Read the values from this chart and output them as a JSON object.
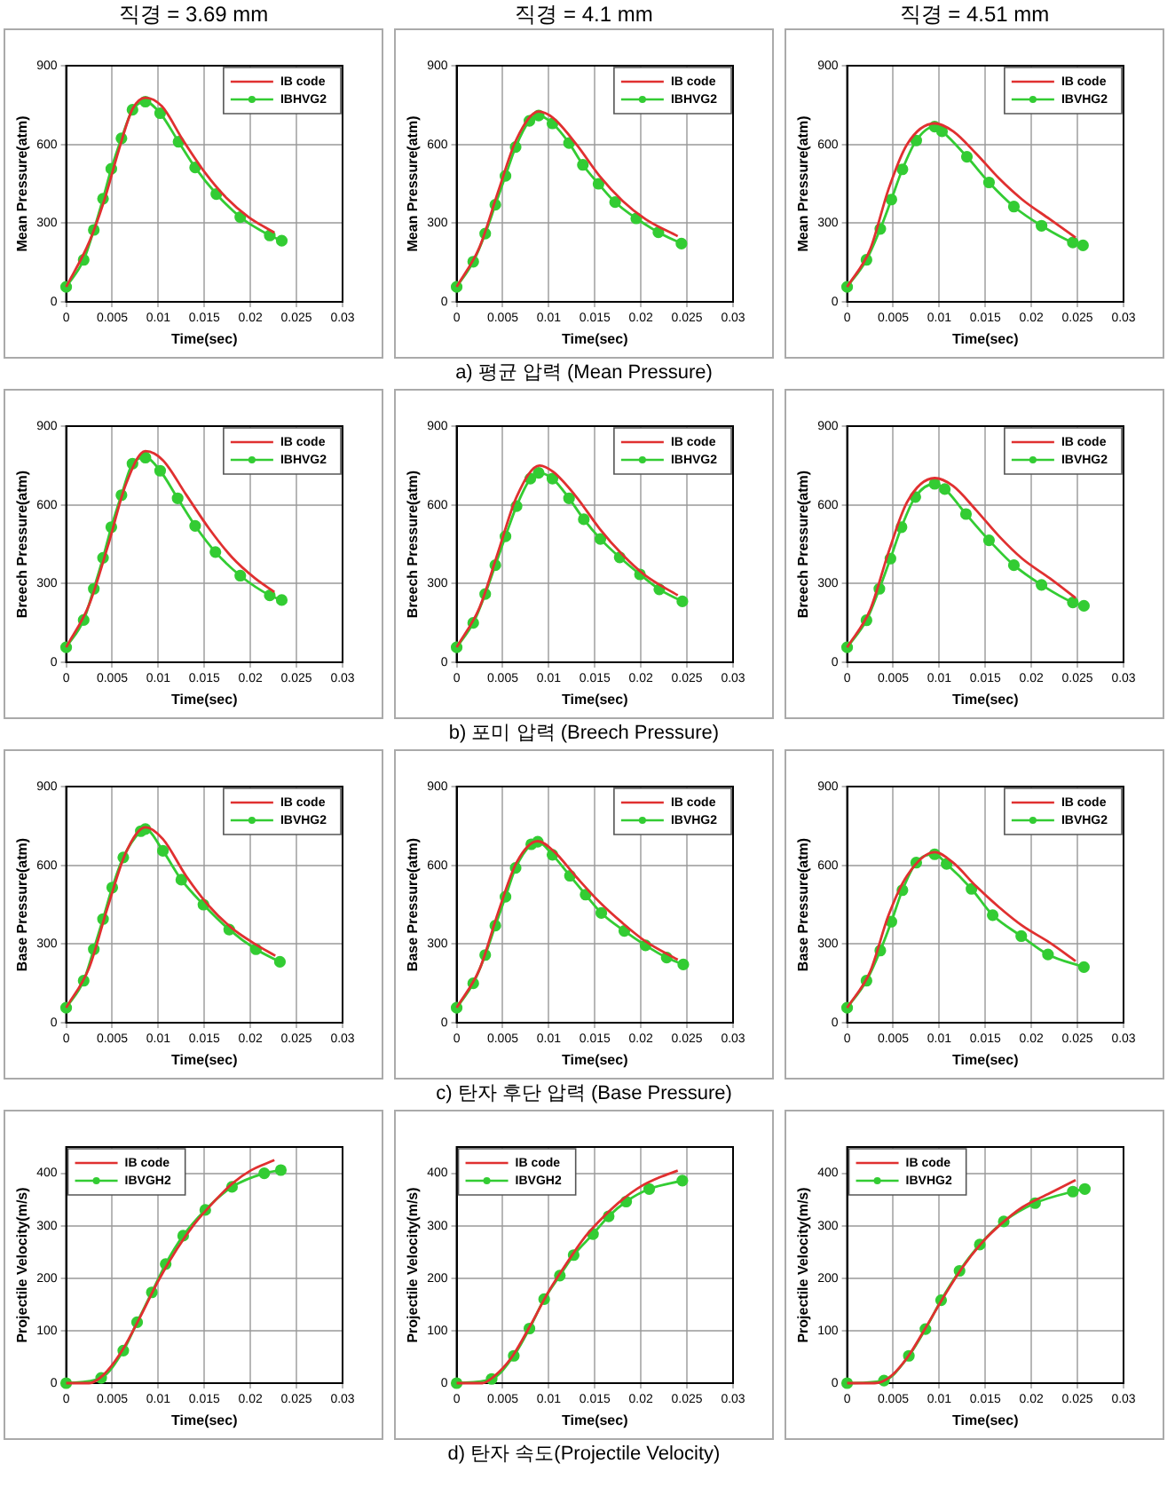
{
  "chart_data": [
    {
      "type": "line",
      "title": "직경 = 3.69 mm",
      "xlabel": "Time(sec)",
      "ylabel": "Mean Pressure(atm)",
      "xlim": [
        0,
        0.03
      ],
      "xticks": [
        0,
        0.005,
        0.01,
        0.015,
        0.02,
        0.025,
        0.03
      ],
      "ylim": [
        0,
        900
      ],
      "yticks": [
        0,
        300,
        600,
        900
      ],
      "grid": true,
      "legend": "top right",
      "series": [
        {
          "name": "IB code",
          "color": "#e03030",
          "marker": "none",
          "x": [
            0,
            0.0025,
            0.0041,
            0.0057,
            0.0072,
            0.0086,
            0.0104,
            0.0127,
            0.0151,
            0.0174,
            0.0198,
            0.0226
          ],
          "values": [
            57,
            228,
            383,
            577,
            735,
            778,
            745,
            615,
            491,
            396,
            323,
            264
          ]
        },
        {
          "name": "IBHVG2",
          "color": "#33cc33",
          "marker": "circle",
          "x": [
            0,
            0.0019,
            0.003,
            0.004,
            0.0049,
            0.006,
            0.0072,
            0.0086,
            0.0102,
            0.0122,
            0.014,
            0.0163,
            0.0189,
            0.0221,
            0.0234
          ],
          "values": [
            57,
            160,
            274,
            393,
            507,
            623,
            732,
            763,
            719,
            610,
            512,
            411,
            323,
            253,
            233
          ]
        }
      ]
    },
    {
      "type": "line",
      "title": "직경 = 4.1 mm",
      "xlabel": "Time(sec)",
      "ylabel": "Mean Pressure(atm)",
      "xlim": [
        0,
        0.03
      ],
      "xticks": [
        0,
        0.005,
        0.01,
        0.015,
        0.02,
        0.025,
        0.03
      ],
      "ylim": [
        0,
        900
      ],
      "yticks": [
        0,
        300,
        600,
        900
      ],
      "grid": true,
      "legend": "top right",
      "annotations": [
        "a) 평균 압력 (Mean Pressure)"
      ],
      "series": [
        {
          "name": "IB code",
          "color": "#e03030",
          "marker": "none",
          "x": [
            0,
            0.0025,
            0.0045,
            0.0065,
            0.0089,
            0.0105,
            0.013,
            0.0155,
            0.018,
            0.0205,
            0.024
          ],
          "values": [
            57,
            210,
            420,
            620,
            725,
            700,
            600,
            480,
            385,
            315,
            250
          ]
        },
        {
          "name": "IBHVG2",
          "color": "#33cc33",
          "marker": "circle",
          "x": [
            0,
            0.0018,
            0.0031,
            0.0042,
            0.0053,
            0.0064,
            0.0079,
            0.0089,
            0.0104,
            0.0122,
            0.0137,
            0.0154,
            0.0172,
            0.0195,
            0.0219,
            0.0244
          ],
          "values": [
            57,
            153,
            260,
            370,
            480,
            590,
            690,
            710,
            680,
            605,
            522,
            450,
            380,
            318,
            265,
            222
          ]
        }
      ]
    },
    {
      "type": "line",
      "title": "직경 = 4.51 mm",
      "xlabel": "Time(sec)",
      "ylabel": "Mean Pressure(atm)",
      "xlim": [
        0,
        0.03
      ],
      "xticks": [
        0,
        0.005,
        0.01,
        0.015,
        0.02,
        0.025,
        0.03
      ],
      "ylim": [
        0,
        900
      ],
      "yticks": [
        0,
        300,
        600,
        900
      ],
      "grid": true,
      "legend": "top right",
      "series": [
        {
          "name": "IB code",
          "color": "#e03030",
          "marker": "none",
          "x": [
            0,
            0.0025,
            0.0045,
            0.0065,
            0.0095,
            0.0115,
            0.014,
            0.0165,
            0.019,
            0.022,
            0.0248
          ],
          "values": [
            57,
            200,
            430,
            600,
            680,
            650,
            565,
            470,
            390,
            315,
            245
          ]
        },
        {
          "name": "IBVHG2",
          "color": "#33cc33",
          "marker": "circle",
          "x": [
            0,
            0.0021,
            0.0036,
            0.0048,
            0.006,
            0.0075,
            0.0095,
            0.0103,
            0.013,
            0.0154,
            0.0181,
            0.0211,
            0.0245,
            0.0256
          ],
          "values": [
            57,
            160,
            278,
            390,
            505,
            615,
            668,
            650,
            553,
            455,
            363,
            290,
            226,
            215
          ]
        }
      ]
    },
    {
      "type": "line",
      "xlabel": "Time(sec)",
      "ylabel": "Breech Pressure(atm)",
      "xlim": [
        0,
        0.03
      ],
      "xticks": [
        0,
        0.005,
        0.01,
        0.015,
        0.02,
        0.025,
        0.03
      ],
      "ylim": [
        0,
        900
      ],
      "yticks": [
        0,
        300,
        600,
        900
      ],
      "grid": true,
      "legend": "top right",
      "series": [
        {
          "name": "IB code",
          "color": "#e03030",
          "marker": "none",
          "x": [
            0,
            0.0025,
            0.0045,
            0.0065,
            0.0086,
            0.0105,
            0.013,
            0.0155,
            0.018,
            0.0205,
            0.0226
          ],
          "values": [
            57,
            220,
            440,
            680,
            805,
            770,
            640,
            510,
            400,
            320,
            268
          ]
        },
        {
          "name": "IBHVG2",
          "color": "#33cc33",
          "marker": "circle",
          "x": [
            0,
            0.0019,
            0.003,
            0.004,
            0.0049,
            0.006,
            0.0072,
            0.0086,
            0.0102,
            0.0121,
            0.014,
            0.0162,
            0.0189,
            0.0221,
            0.0234
          ],
          "values": [
            57,
            161,
            280,
            398,
            515,
            637,
            757,
            780,
            730,
            625,
            520,
            420,
            330,
            255,
            237
          ]
        }
      ]
    },
    {
      "type": "line",
      "xlabel": "Time(sec)",
      "ylabel": "Breech Pressure(atm)",
      "xlim": [
        0,
        0.03
      ],
      "xticks": [
        0,
        0.005,
        0.01,
        0.015,
        0.02,
        0.025,
        0.03
      ],
      "ylim": [
        0,
        900
      ],
      "yticks": [
        0,
        300,
        600,
        900
      ],
      "grid": true,
      "legend": "top right",
      "annotations": [
        "b) 포미 압력 (Breech Pressure)"
      ],
      "series": [
        {
          "name": "IB code",
          "color": "#e03030",
          "marker": "none",
          "x": [
            0,
            0.0025,
            0.0045,
            0.0065,
            0.009,
            0.0105,
            0.013,
            0.0155,
            0.018,
            0.0205,
            0.024
          ],
          "values": [
            57,
            210,
            420,
            630,
            750,
            725,
            630,
            510,
            410,
            330,
            255
          ]
        },
        {
          "name": "IBHVG2",
          "color": "#33cc33",
          "marker": "circle",
          "x": [
            0,
            0.0018,
            0.0031,
            0.0042,
            0.0053,
            0.0065,
            0.008,
            0.0089,
            0.0104,
            0.0122,
            0.0138,
            0.0156,
            0.0177,
            0.0199,
            0.022,
            0.0245
          ],
          "values": [
            57,
            150,
            260,
            370,
            480,
            595,
            700,
            722,
            700,
            625,
            545,
            470,
            400,
            335,
            278,
            232
          ]
        }
      ]
    },
    {
      "type": "line",
      "xlabel": "Time(sec)",
      "ylabel": "Breech Pressure(atm)",
      "xlim": [
        0,
        0.03
      ],
      "xticks": [
        0,
        0.005,
        0.01,
        0.015,
        0.02,
        0.025,
        0.03
      ],
      "ylim": [
        0,
        900
      ],
      "yticks": [
        0,
        300,
        600,
        900
      ],
      "grid": true,
      "legend": "top right",
      "series": [
        {
          "name": "IB code",
          "color": "#e03030",
          "marker": "none",
          "x": [
            0,
            0.0025,
            0.0045,
            0.0065,
            0.0095,
            0.0115,
            0.014,
            0.0165,
            0.019,
            0.022,
            0.0248
          ],
          "values": [
            57,
            200,
            420,
            610,
            702,
            672,
            580,
            480,
            395,
            320,
            245
          ]
        },
        {
          "name": "IBVHG2",
          "color": "#33cc33",
          "marker": "circle",
          "x": [
            0,
            0.0021,
            0.0035,
            0.0047,
            0.0059,
            0.0074,
            0.0095,
            0.0106,
            0.0129,
            0.0154,
            0.0181,
            0.0211,
            0.0245,
            0.0257
          ],
          "values": [
            57,
            160,
            280,
            395,
            515,
            630,
            680,
            660,
            565,
            465,
            370,
            295,
            228,
            215
          ]
        }
      ]
    },
    {
      "type": "line",
      "xlabel": "Time(sec)",
      "ylabel": "Base Pressure(atm)",
      "xlim": [
        0,
        0.03
      ],
      "xticks": [
        0,
        0.005,
        0.01,
        0.015,
        0.02,
        0.025,
        0.03
      ],
      "ylim": [
        0,
        900
      ],
      "yticks": [
        0,
        300,
        600,
        900
      ],
      "grid": true,
      "legend": "top right",
      "series": [
        {
          "name": "IB code",
          "color": "#e03030",
          "marker": "none",
          "x": [
            0,
            0.0025,
            0.0045,
            0.0065,
            0.0086,
            0.0105,
            0.013,
            0.0155,
            0.018,
            0.0205,
            0.0227
          ],
          "values": [
            57,
            210,
            440,
            650,
            745,
            700,
            560,
            445,
            360,
            300,
            255
          ]
        },
        {
          "name": "IBVHG2",
          "color": "#33cc33",
          "marker": "circle",
          "x": [
            0,
            0.0019,
            0.003,
            0.004,
            0.005,
            0.0062,
            0.0081,
            0.0086,
            0.0105,
            0.0125,
            0.0149,
            0.0177,
            0.0206,
            0.0232
          ],
          "values": [
            57,
            160,
            280,
            395,
            515,
            630,
            730,
            738,
            655,
            545,
            450,
            355,
            280,
            232
          ]
        }
      ]
    },
    {
      "type": "line",
      "xlabel": "Time(sec)",
      "ylabel": "Base Pressure(atm)",
      "xlim": [
        0,
        0.03
      ],
      "xticks": [
        0,
        0.005,
        0.01,
        0.015,
        0.02,
        0.025,
        0.03
      ],
      "ylim": [
        0,
        900
      ],
      "yticks": [
        0,
        300,
        600,
        900
      ],
      "grid": true,
      "legend": "top right",
      "annotations": [
        "c) 탄자 후단 압력 (Base Pressure)"
      ],
      "series": [
        {
          "name": "IB code",
          "color": "#e03030",
          "marker": "none",
          "x": [
            0,
            0.0025,
            0.0045,
            0.0065,
            0.0088,
            0.0105,
            0.013,
            0.0155,
            0.018,
            0.0205,
            0.024
          ],
          "values": [
            57,
            205,
            420,
            610,
            692,
            655,
            555,
            460,
            380,
            310,
            240
          ]
        },
        {
          "name": "IBVHG2",
          "color": "#33cc33",
          "marker": "circle",
          "x": [
            0,
            0.0018,
            0.0031,
            0.0042,
            0.0053,
            0.0064,
            0.0081,
            0.0088,
            0.0104,
            0.0123,
            0.014,
            0.0157,
            0.0182,
            0.0205,
            0.0228,
            0.0246
          ],
          "values": [
            57,
            150,
            258,
            370,
            480,
            590,
            680,
            690,
            640,
            560,
            488,
            418,
            350,
            295,
            248,
            222
          ]
        }
      ]
    },
    {
      "type": "line",
      "xlabel": "Time(sec)",
      "ylabel": "Base Pressure(atm)",
      "xlim": [
        0,
        0.03
      ],
      "xticks": [
        0,
        0.005,
        0.01,
        0.015,
        0.02,
        0.025,
        0.03
      ],
      "ylim": [
        0,
        900
      ],
      "yticks": [
        0,
        300,
        600,
        900
      ],
      "grid": true,
      "legend": "top right",
      "series": [
        {
          "name": "IB code",
          "color": "#e03030",
          "marker": "none",
          "x": [
            0,
            0.0025,
            0.0045,
            0.0065,
            0.0095,
            0.0115,
            0.014,
            0.0165,
            0.019,
            0.022,
            0.0248
          ],
          "values": [
            57,
            195,
            410,
            560,
            650,
            610,
            520,
            440,
            370,
            305,
            235
          ]
        },
        {
          "name": "IBVHG2",
          "color": "#33cc33",
          "marker": "circle",
          "x": [
            0,
            0.0021,
            0.0036,
            0.0048,
            0.006,
            0.0075,
            0.0095,
            0.0108,
            0.0135,
            0.0158,
            0.0189,
            0.0218,
            0.0257
          ],
          "values": [
            57,
            160,
            275,
            385,
            505,
            610,
            642,
            605,
            510,
            410,
            330,
            260,
            212
          ]
        }
      ]
    },
    {
      "type": "line",
      "xlabel": "Time(sec)",
      "ylabel": "Projectile Velocity(m/s)",
      "xlim": [
        0,
        0.03
      ],
      "xticks": [
        0,
        0.005,
        0.01,
        0.015,
        0.02,
        0.025,
        0.03
      ],
      "ylim": [
        0,
        450
      ],
      "yticks": [
        0,
        100,
        200,
        300,
        400
      ],
      "grid": true,
      "legend": "top left",
      "series": [
        {
          "name": "IB code",
          "color": "#e03030",
          "marker": "none",
          "x": [
            0,
            0.0025,
            0.004,
            0.006,
            0.008,
            0.01,
            0.012,
            0.014,
            0.016,
            0.018,
            0.02,
            0.0226
          ],
          "values": [
            0,
            0,
            15,
            60,
            125,
            195,
            255,
            305,
            345,
            380,
            405,
            425
          ]
        },
        {
          "name": "IBVGH2",
          "color": "#33cc33",
          "marker": "circle",
          "x": [
            0,
            0.0038,
            0.0062,
            0.0077,
            0.0093,
            0.0108,
            0.0127,
            0.0151,
            0.018,
            0.0215,
            0.0233
          ],
          "values": [
            0,
            10,
            62,
            116,
            173,
            227,
            281,
            330,
            374,
            400,
            406
          ]
        }
      ]
    },
    {
      "type": "line",
      "xlabel": "Time(sec)",
      "ylabel": "Projectile Velocity(m/s)",
      "xlim": [
        0,
        0.03
      ],
      "xticks": [
        0,
        0.005,
        0.01,
        0.015,
        0.02,
        0.025,
        0.03
      ],
      "ylim": [
        0,
        450
      ],
      "yticks": [
        0,
        100,
        200,
        300,
        400
      ],
      "grid": true,
      "legend": "top left",
      "annotations": [
        "d) 탄자 속도(Projectile Velocity)"
      ],
      "series": [
        {
          "name": "IB code",
          "color": "#e03030",
          "marker": "none",
          "x": [
            0,
            0.0028,
            0.004,
            0.006,
            0.008,
            0.01,
            0.012,
            0.014,
            0.016,
            0.018,
            0.02,
            0.022,
            0.024
          ],
          "values": [
            0,
            0,
            12,
            50,
            110,
            175,
            230,
            280,
            318,
            350,
            375,
            392,
            405
          ]
        },
        {
          "name": "IBVGH2",
          "color": "#33cc33",
          "marker": "circle",
          "x": [
            0,
            0.0038,
            0.0062,
            0.0079,
            0.0095,
            0.0112,
            0.0127,
            0.0148,
            0.0165,
            0.0184,
            0.0209,
            0.0245
          ],
          "values": [
            0,
            8,
            52,
            104,
            160,
            205,
            244,
            284,
            318,
            346,
            370,
            386
          ]
        }
      ]
    },
    {
      "type": "line",
      "xlabel": "Time(sec)",
      "ylabel": "Projectile Velocity(m/s)",
      "xlim": [
        0,
        0.03
      ],
      "xticks": [
        0,
        0.005,
        0.01,
        0.015,
        0.02,
        0.025,
        0.03
      ],
      "ylim": [
        0,
        450
      ],
      "yticks": [
        0,
        100,
        200,
        300,
        400
      ],
      "grid": true,
      "legend": "top left",
      "series": [
        {
          "name": "IB code",
          "color": "#e03030",
          "marker": "none",
          "x": [
            0,
            0.003,
            0.0045,
            0.0065,
            0.0085,
            0.0105,
            0.0125,
            0.0145,
            0.0165,
            0.019,
            0.022,
            0.0248
          ],
          "values": [
            0,
            0,
            10,
            48,
            105,
            165,
            220,
            265,
            300,
            335,
            362,
            387
          ]
        },
        {
          "name": "IBVHG2",
          "color": "#33cc33",
          "marker": "circle",
          "x": [
            0,
            0.004,
            0.0067,
            0.0085,
            0.0102,
            0.0122,
            0.0144,
            0.017,
            0.0204,
            0.0245,
            0.0258
          ],
          "values": [
            0,
            5,
            52,
            103,
            158,
            214,
            264,
            308,
            343,
            365,
            370
          ]
        }
      ]
    }
  ]
}
